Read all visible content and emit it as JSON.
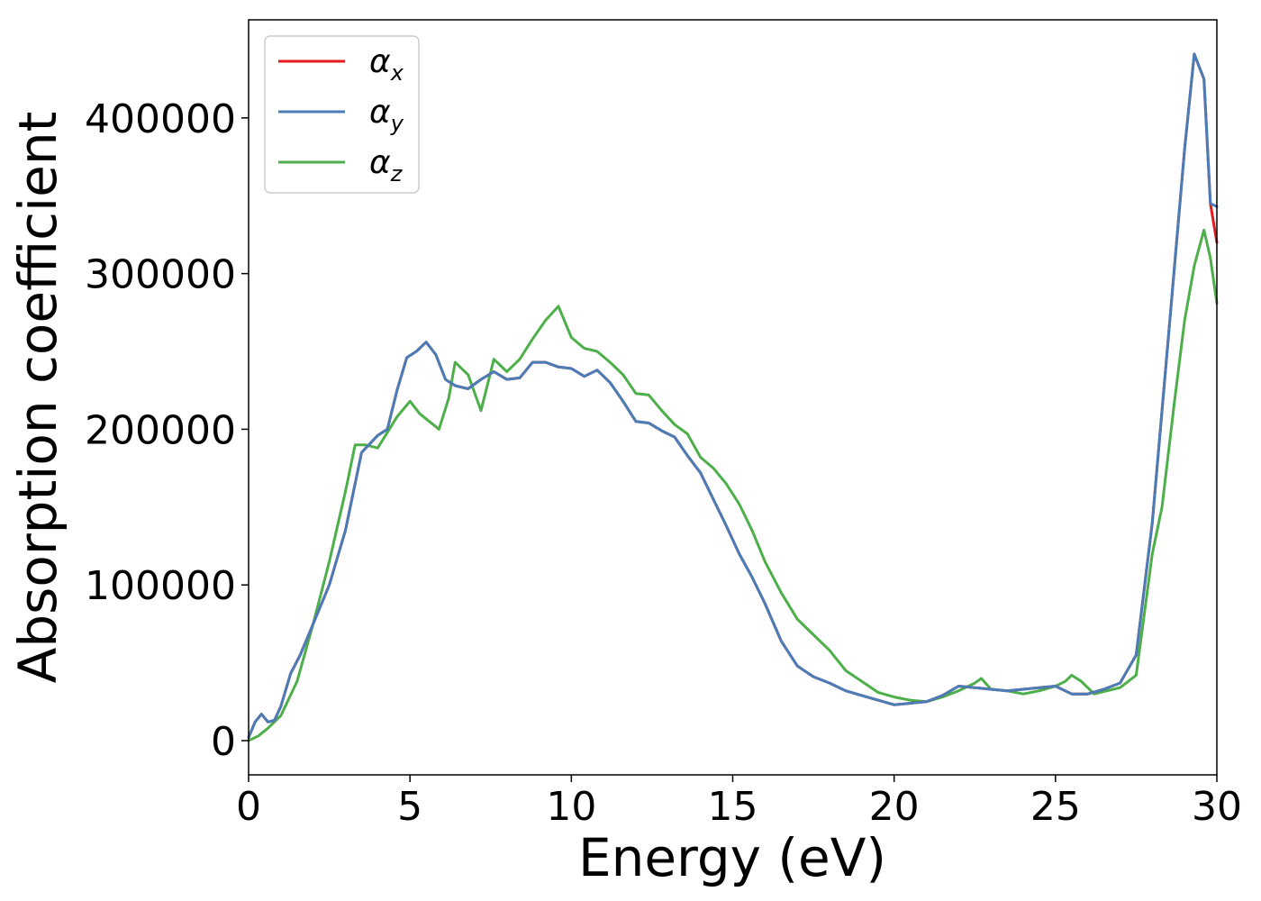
{
  "chart_data": {
    "type": "line",
    "title": "",
    "xlabel": "Energy (eV)",
    "ylabel": "Absorption coefficient",
    "xlim": [
      0,
      30
    ],
    "ylim": [
      -22000,
      463000
    ],
    "xticks": [
      0,
      5,
      10,
      15,
      20,
      25,
      30
    ],
    "yticks": [
      0,
      100000,
      200000,
      300000,
      400000
    ],
    "xtick_labels": [
      "0",
      "5",
      "10",
      "15",
      "20",
      "25",
      "30"
    ],
    "ytick_labels": [
      "0",
      "100000",
      "200000",
      "300000",
      "400000"
    ],
    "grid": false,
    "legend_position": "top-left",
    "series": [
      {
        "name": "α",
        "subscript": "x",
        "color": "#e41a1c",
        "x": [
          0,
          0.2,
          0.4,
          0.6,
          0.8,
          1.0,
          1.3,
          1.6,
          2.0,
          2.5,
          3.0,
          3.5,
          4.0,
          4.3,
          4.6,
          4.9,
          5.2,
          5.5,
          5.8,
          6.1,
          6.4,
          6.8,
          7.2,
          7.6,
          8.0,
          8.4,
          8.8,
          9.2,
          9.6,
          10.0,
          10.4,
          10.8,
          11.2,
          11.6,
          12.0,
          12.4,
          12.8,
          13.2,
          13.6,
          14.0,
          14.4,
          14.8,
          15.2,
          15.6,
          16.0,
          16.5,
          17.0,
          17.5,
          18.0,
          18.5,
          19.0,
          19.5,
          20.0,
          20.5,
          21.0,
          21.5,
          22.0,
          22.5,
          23.0,
          23.5,
          24.0,
          24.5,
          25.0,
          25.5,
          26.0,
          26.5,
          27.0,
          27.5,
          28.0,
          28.5,
          29.0,
          29.3,
          29.6,
          29.8,
          30.0
        ],
        "values": [
          2000,
          12000,
          17000,
          12000,
          13000,
          22000,
          43000,
          55000,
          75000,
          100000,
          135000,
          185000,
          196000,
          200000,
          225000,
          246000,
          250000,
          256000,
          248000,
          232000,
          228000,
          226000,
          232000,
          237000,
          232000,
          233000,
          243000,
          243000,
          240000,
          239000,
          234000,
          238000,
          230000,
          218000,
          205000,
          204000,
          199000,
          195000,
          183000,
          172000,
          155000,
          138000,
          120000,
          105000,
          88000,
          64000,
          48000,
          41000,
          37000,
          32000,
          29000,
          26000,
          23000,
          24000,
          25000,
          29000,
          35000,
          34000,
          33000,
          32000,
          33000,
          34000,
          35000,
          30000,
          30000,
          33000,
          37000,
          55000,
          140000,
          260000,
          380000,
          441000,
          425000,
          345000,
          320000
        ]
      },
      {
        "name": "α",
        "subscript": "y",
        "color": "#4a7db7",
        "x": [
          0,
          0.2,
          0.4,
          0.6,
          0.8,
          1.0,
          1.3,
          1.6,
          2.0,
          2.5,
          3.0,
          3.5,
          4.0,
          4.3,
          4.6,
          4.9,
          5.2,
          5.5,
          5.8,
          6.1,
          6.4,
          6.8,
          7.2,
          7.6,
          8.0,
          8.4,
          8.8,
          9.2,
          9.6,
          10.0,
          10.4,
          10.8,
          11.2,
          11.6,
          12.0,
          12.4,
          12.8,
          13.2,
          13.6,
          14.0,
          14.4,
          14.8,
          15.2,
          15.6,
          16.0,
          16.5,
          17.0,
          17.5,
          18.0,
          18.5,
          19.0,
          19.5,
          20.0,
          20.5,
          21.0,
          21.5,
          22.0,
          22.5,
          23.0,
          23.5,
          24.0,
          24.5,
          25.0,
          25.5,
          26.0,
          26.5,
          27.0,
          27.5,
          28.0,
          28.5,
          29.0,
          29.3,
          29.6,
          29.8,
          30.0
        ],
        "values": [
          2000,
          12000,
          17000,
          12000,
          13000,
          22000,
          43000,
          55000,
          75000,
          100000,
          135000,
          185000,
          196000,
          200000,
          225000,
          246000,
          250000,
          256000,
          248000,
          232000,
          228000,
          226000,
          232000,
          237000,
          232000,
          233000,
          243000,
          243000,
          240000,
          239000,
          234000,
          238000,
          230000,
          218000,
          205000,
          204000,
          199000,
          195000,
          183000,
          172000,
          155000,
          138000,
          120000,
          105000,
          88000,
          64000,
          48000,
          41000,
          37000,
          32000,
          29000,
          26000,
          23000,
          24000,
          25000,
          29000,
          35000,
          34000,
          33000,
          32000,
          33000,
          34000,
          35000,
          30000,
          30000,
          33000,
          37000,
          55000,
          140000,
          260000,
          380000,
          441000,
          425000,
          345000,
          343000
        ]
      },
      {
        "name": "α",
        "subscript": "z",
        "color": "#4daf4a",
        "x": [
          0,
          0.3,
          0.6,
          1.0,
          1.5,
          2.0,
          2.5,
          3.0,
          3.3,
          3.6,
          4.0,
          4.3,
          4.6,
          5.0,
          5.3,
          5.6,
          5.9,
          6.2,
          6.4,
          6.8,
          7.2,
          7.6,
          8.0,
          8.4,
          8.8,
          9.2,
          9.6,
          10.0,
          10.4,
          10.8,
          11.2,
          11.6,
          12.0,
          12.4,
          12.8,
          13.2,
          13.6,
          14.0,
          14.4,
          14.8,
          15.2,
          15.6,
          16.0,
          16.5,
          17.0,
          17.5,
          18.0,
          18.5,
          19.0,
          19.5,
          20.0,
          20.5,
          21.0,
          21.5,
          22.0,
          22.5,
          22.7,
          23.0,
          23.5,
          24.0,
          24.5,
          25.0,
          25.3,
          25.5,
          25.8,
          26.2,
          26.6,
          27.0,
          27.5,
          28.0,
          28.3,
          28.7,
          29.0,
          29.3,
          29.6,
          29.8,
          30.0
        ],
        "values": [
          0,
          3000,
          8000,
          16000,
          38000,
          75000,
          115000,
          160000,
          190000,
          190000,
          188000,
          198000,
          208000,
          218000,
          210000,
          205000,
          200000,
          220000,
          243000,
          235000,
          212000,
          245000,
          237000,
          245000,
          258000,
          270000,
          279000,
          259000,
          252000,
          250000,
          243000,
          235000,
          223000,
          222000,
          212000,
          203000,
          197000,
          182000,
          175000,
          165000,
          152000,
          135000,
          115000,
          95000,
          78000,
          68000,
          58000,
          45000,
          38000,
          31000,
          28000,
          26000,
          25000,
          28000,
          32000,
          37000,
          40000,
          33000,
          32000,
          30000,
          32000,
          35000,
          38000,
          42000,
          38000,
          30000,
          32000,
          34000,
          42000,
          120000,
          150000,
          220000,
          270000,
          305000,
          328000,
          310000,
          281000
        ]
      }
    ]
  }
}
